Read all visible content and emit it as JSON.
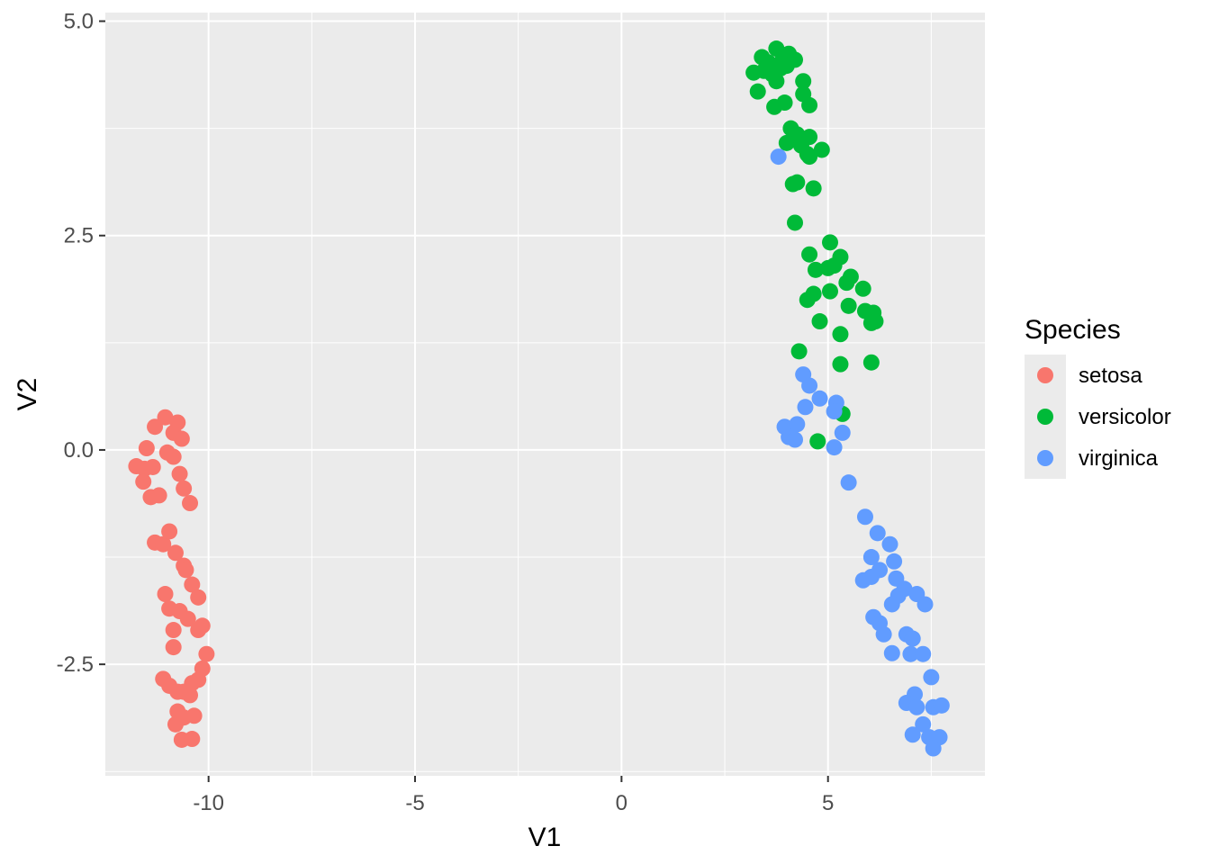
{
  "chart_data": {
    "type": "scatter",
    "xlabel": "V1",
    "ylabel": "V2",
    "xlim": [
      -12.5,
      8.8
    ],
    "ylim": [
      -3.8,
      5.1
    ],
    "x_ticks": [
      -10,
      -5,
      0,
      5
    ],
    "x_tick_labels": [
      "-10",
      "-5",
      "0",
      "5"
    ],
    "y_ticks": [
      -2.5,
      0,
      2.5,
      5
    ],
    "y_tick_labels": [
      "-2.5",
      "0.0",
      "2.5",
      "5.0"
    ],
    "grid": true,
    "legend_position": "right",
    "legend_title": "Species",
    "series": [
      {
        "name": "setosa",
        "color": "#F8766D",
        "points": [
          [
            -11.75,
            -0.19
          ],
          [
            -11.5,
            0.02
          ],
          [
            -11.55,
            -0.22
          ],
          [
            -11.58,
            -0.37
          ],
          [
            -11.35,
            -0.2
          ],
          [
            -11.4,
            -0.55
          ],
          [
            -11.2,
            -0.53
          ],
          [
            -11.3,
            0.27
          ],
          [
            -11.05,
            0.38
          ],
          [
            -10.75,
            0.32
          ],
          [
            -10.85,
            0.2
          ],
          [
            -10.65,
            0.13
          ],
          [
            -11.0,
            -0.03
          ],
          [
            -10.85,
            -0.08
          ],
          [
            -10.7,
            -0.28
          ],
          [
            -10.6,
            -0.45
          ],
          [
            -10.45,
            -0.62
          ],
          [
            -11.3,
            -1.08
          ],
          [
            -11.1,
            -1.1
          ],
          [
            -10.95,
            -0.95
          ],
          [
            -10.8,
            -1.2
          ],
          [
            -10.6,
            -1.35
          ],
          [
            -10.55,
            -1.4
          ],
          [
            -10.4,
            -1.57
          ],
          [
            -10.25,
            -1.72
          ],
          [
            -11.05,
            -1.68
          ],
          [
            -10.95,
            -1.85
          ],
          [
            -10.7,
            -1.88
          ],
          [
            -10.5,
            -1.97
          ],
          [
            -10.85,
            -2.1
          ],
          [
            -10.15,
            -2.05
          ],
          [
            -10.25,
            -2.1
          ],
          [
            -10.85,
            -2.3
          ],
          [
            -10.05,
            -2.38
          ],
          [
            -10.15,
            -2.55
          ],
          [
            -10.25,
            -2.68
          ],
          [
            -10.4,
            -2.72
          ],
          [
            -11.1,
            -2.67
          ],
          [
            -10.95,
            -2.75
          ],
          [
            -10.75,
            -2.82
          ],
          [
            -10.6,
            -2.82
          ],
          [
            -10.45,
            -2.86
          ],
          [
            -10.75,
            -3.05
          ],
          [
            -10.8,
            -3.2
          ],
          [
            -10.6,
            -3.12
          ],
          [
            -10.35,
            -3.1
          ],
          [
            -10.65,
            -3.38
          ],
          [
            -10.4,
            -3.37
          ]
        ]
      },
      {
        "name": "versicolor",
        "color": "#00BA38",
        "points": [
          [
            3.2,
            4.4
          ],
          [
            3.4,
            4.58
          ],
          [
            3.55,
            4.52
          ],
          [
            3.75,
            4.68
          ],
          [
            3.9,
            4.55
          ],
          [
            4.05,
            4.62
          ],
          [
            4.2,
            4.55
          ],
          [
            3.45,
            4.42
          ],
          [
            3.65,
            4.38
          ],
          [
            3.85,
            4.45
          ],
          [
            4.0,
            4.48
          ],
          [
            3.3,
            4.18
          ],
          [
            3.75,
            4.3
          ],
          [
            4.4,
            4.3
          ],
          [
            4.4,
            4.15
          ],
          [
            3.7,
            4.0
          ],
          [
            3.95,
            4.05
          ],
          [
            4.55,
            4.02
          ],
          [
            4.1,
            3.75
          ],
          [
            4.25,
            3.68
          ],
          [
            4.55,
            3.65
          ],
          [
            4.0,
            3.58
          ],
          [
            4.35,
            3.55
          ],
          [
            4.5,
            3.45
          ],
          [
            4.55,
            3.42
          ],
          [
            4.85,
            3.5
          ],
          [
            4.15,
            3.1
          ],
          [
            4.25,
            3.12
          ],
          [
            4.65,
            3.05
          ],
          [
            4.2,
            2.65
          ],
          [
            5.05,
            2.42
          ],
          [
            4.55,
            2.28
          ],
          [
            5.3,
            2.25
          ],
          [
            4.7,
            2.1
          ],
          [
            5.0,
            2.12
          ],
          [
            5.15,
            2.15
          ],
          [
            5.45,
            1.95
          ],
          [
            5.55,
            2.02
          ],
          [
            5.85,
            1.88
          ],
          [
            4.5,
            1.75
          ],
          [
            4.65,
            1.82
          ],
          [
            5.05,
            1.85
          ],
          [
            5.5,
            1.68
          ],
          [
            5.9,
            1.62
          ],
          [
            6.1,
            1.6
          ],
          [
            6.05,
            1.48
          ],
          [
            6.15,
            1.5
          ],
          [
            4.8,
            1.5
          ],
          [
            5.3,
            1.35
          ],
          [
            4.3,
            1.15
          ],
          [
            5.3,
            1.0
          ],
          [
            6.05,
            1.02
          ],
          [
            5.35,
            0.42
          ],
          [
            4.75,
            0.1
          ]
        ]
      },
      {
        "name": "virginica",
        "color": "#619CFF",
        "points": [
          [
            3.8,
            3.42
          ],
          [
            4.4,
            0.88
          ],
          [
            4.55,
            0.75
          ],
          [
            4.8,
            0.6
          ],
          [
            4.45,
            0.5
          ],
          [
            5.2,
            0.55
          ],
          [
            5.15,
            0.45
          ],
          [
            3.95,
            0.27
          ],
          [
            4.25,
            0.3
          ],
          [
            4.05,
            0.15
          ],
          [
            4.2,
            0.12
          ],
          [
            5.35,
            0.2
          ],
          [
            5.15,
            0.03
          ],
          [
            5.5,
            -0.38
          ],
          [
            5.9,
            -0.78
          ],
          [
            6.2,
            -0.97
          ],
          [
            6.5,
            -1.1
          ],
          [
            6.05,
            -1.25
          ],
          [
            6.6,
            -1.3
          ],
          [
            6.25,
            -1.4
          ],
          [
            5.85,
            -1.52
          ],
          [
            6.05,
            -1.48
          ],
          [
            6.65,
            -1.5
          ],
          [
            6.85,
            -1.62
          ],
          [
            6.7,
            -1.7
          ],
          [
            7.15,
            -1.68
          ],
          [
            6.55,
            -1.8
          ],
          [
            7.35,
            -1.8
          ],
          [
            6.1,
            -1.95
          ],
          [
            6.25,
            -2.02
          ],
          [
            6.35,
            -2.15
          ],
          [
            6.9,
            -2.15
          ],
          [
            7.05,
            -2.2
          ],
          [
            6.55,
            -2.37
          ],
          [
            7.0,
            -2.38
          ],
          [
            7.3,
            -2.38
          ],
          [
            7.5,
            -2.65
          ],
          [
            7.1,
            -2.85
          ],
          [
            6.9,
            -2.95
          ],
          [
            7.15,
            -3.0
          ],
          [
            7.55,
            -3.0
          ],
          [
            7.75,
            -2.98
          ],
          [
            7.3,
            -3.2
          ],
          [
            7.05,
            -3.32
          ],
          [
            7.45,
            -3.35
          ],
          [
            7.7,
            -3.35
          ],
          [
            7.55,
            -3.48
          ]
        ]
      }
    ]
  }
}
